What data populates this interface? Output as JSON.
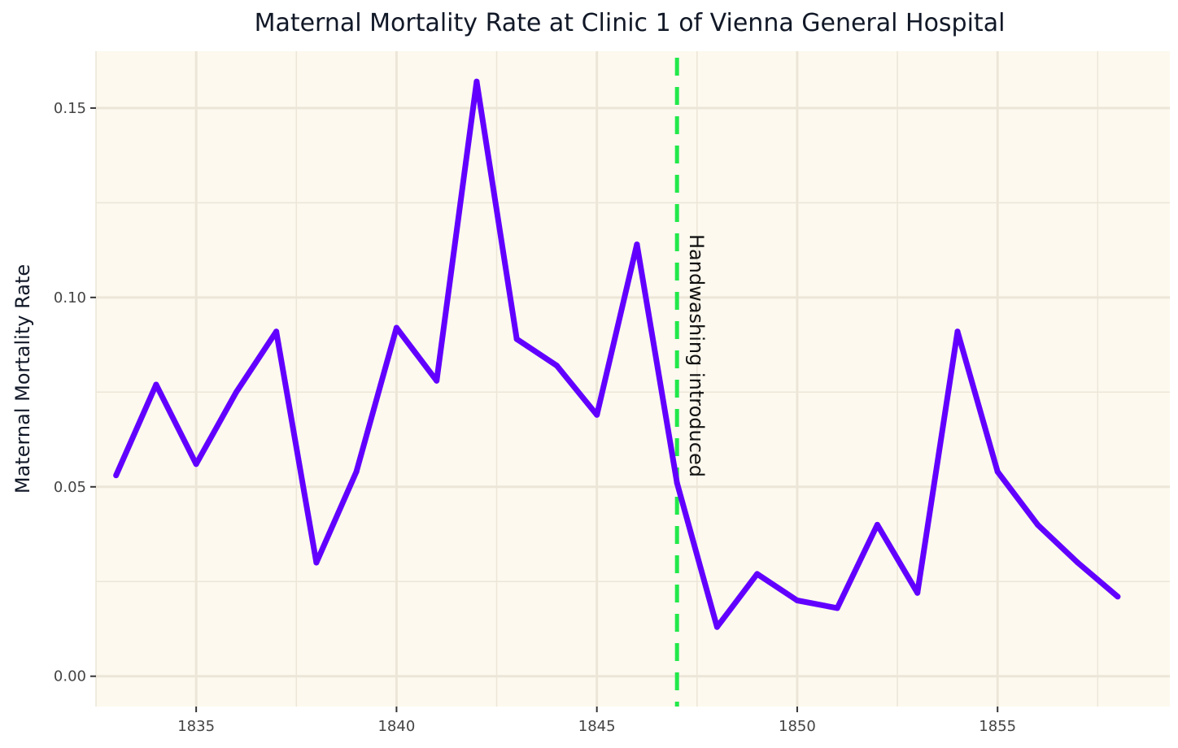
{
  "chart_data": {
    "type": "line",
    "title": "Maternal Mortality Rate at Clinic 1 of Vienna General Hospital",
    "xlabel": "",
    "ylabel": "Maternal Mortality Rate",
    "xlim": [
      1832.5,
      1859.3
    ],
    "ylim": [
      -0.008,
      0.165
    ],
    "x_ticks": [
      1835,
      1840,
      1845,
      1850,
      1855
    ],
    "x_tick_labels": [
      "1835",
      "1840",
      "1845",
      "1850",
      "1855"
    ],
    "y_ticks": [
      0.0,
      0.05,
      0.1,
      0.15
    ],
    "y_tick_labels": [
      "0.00",
      "0.05",
      "0.10",
      "0.15"
    ],
    "grid": true,
    "series": [
      {
        "x": [
          1833,
          1834,
          1835,
          1836,
          1837,
          1838,
          1839,
          1840,
          1841,
          1842,
          1843,
          1844,
          1845,
          1846,
          1847,
          1848,
          1849,
          1850,
          1851,
          1852,
          1853,
          1854,
          1855,
          1856,
          1857,
          1858
        ],
        "y": [
          0.053,
          0.077,
          0.056,
          0.075,
          0.091,
          0.03,
          0.054,
          0.092,
          0.078,
          0.157,
          0.089,
          0.082,
          0.069,
          0.114,
          0.051,
          0.013,
          0.027,
          0.02,
          0.018,
          0.04,
          0.022,
          0.091,
          0.054,
          0.04,
          0.03,
          0.021
        ],
        "color": "#6200ff"
      }
    ],
    "vline": {
      "x": 1847,
      "color": "#22e84a",
      "style": "dashed"
    },
    "annotation": {
      "text": "Handwashing introduced",
      "x": 1847
    },
    "colors": {
      "panel_background": "#fdf9ee",
      "grid": "#ece6d8"
    }
  }
}
